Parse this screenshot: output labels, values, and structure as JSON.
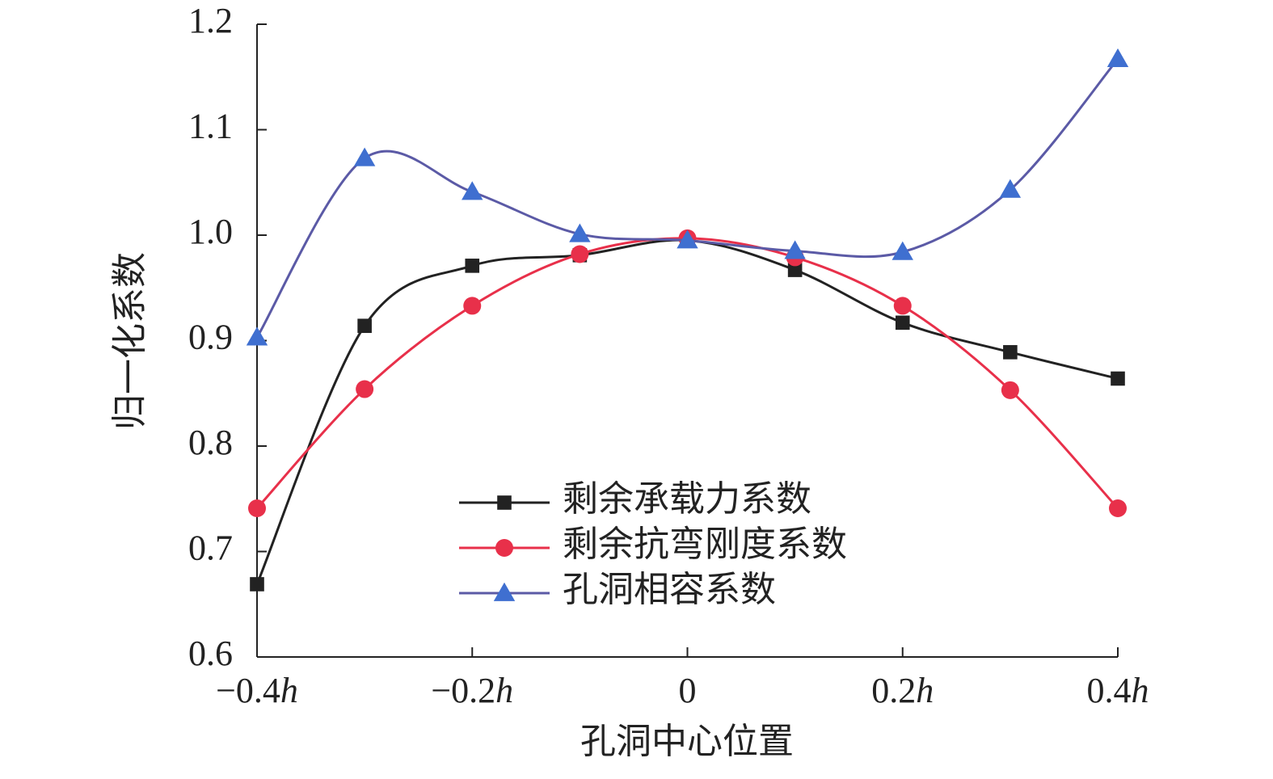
{
  "chart_data": {
    "type": "line",
    "x_label": "孔洞中心位置",
    "y_label": "归一化系数",
    "x": [
      -0.4,
      -0.3,
      -0.2,
      -0.1,
      0,
      0.1,
      0.2,
      0.3,
      0.4
    ],
    "series": [
      {
        "name": "剩余承载力系数",
        "color": "#222222",
        "marker": "square",
        "values": [
          0.669,
          0.914,
          0.971,
          0.981,
          0.995,
          0.967,
          0.917,
          0.889,
          0.864
        ]
      },
      {
        "name": "剩余抗弯刚度系数",
        "color": "#e8304a",
        "marker": "circle",
        "values": [
          0.741,
          0.854,
          0.933,
          0.982,
          0.997,
          0.979,
          0.933,
          0.853,
          0.741
        ]
      },
      {
        "name": "孔洞相容系数",
        "color": "#3f6fd0",
        "line_color": "#5b5aa6",
        "marker": "triangle",
        "values": [
          0.903,
          1.073,
          1.041,
          1.001,
          0.995,
          0.985,
          0.984,
          1.043,
          1.167
        ]
      }
    ],
    "xlim": [
      -0.4,
      0.4
    ],
    "xticks": [
      {
        "value": -0.4,
        "label": "−0.4h"
      },
      {
        "value": -0.2,
        "label": "−0.2h"
      },
      0,
      {
        "value": 0.2,
        "label": "0.2h"
      },
      {
        "value": 0.4,
        "label": "0.4h"
      }
    ],
    "ylim": [
      0.6,
      1.2
    ],
    "yticks": [
      0.6,
      0.7,
      0.8,
      0.9,
      {
        "value": 1,
        "label": "1.0"
      },
      1.1,
      1.2
    ],
    "smooth": true,
    "grid": false,
    "legend": "lower center"
  }
}
